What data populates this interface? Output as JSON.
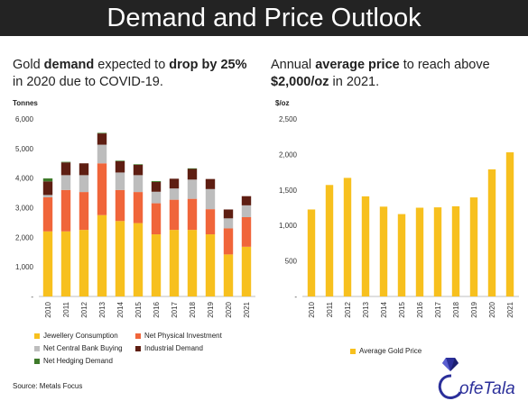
{
  "header": {
    "title": "Demand and Price Outlook"
  },
  "left_panel": {
    "subtitle_parts": [
      {
        "text": "Gold ",
        "bold": false
      },
      {
        "text": "demand",
        "bold": true
      },
      {
        "text": " expected to ",
        "bold": false
      },
      {
        "text": "drop by 25%",
        "bold": true
      },
      {
        "text": " in 2020 due to COVID-19.",
        "bold": false
      }
    ],
    "unit": "Tonnes"
  },
  "right_panel": {
    "subtitle_parts": [
      {
        "text": "Annual ",
        "bold": false
      },
      {
        "text": "average price",
        "bold": true
      },
      {
        "text": " to reach above ",
        "bold": false
      },
      {
        "text": "$2,000/oz",
        "bold": true
      },
      {
        "text": " in 2021.",
        "bold": false
      }
    ],
    "unit": "$/oz"
  },
  "source": "Source: Metals Focus",
  "logo_text": "ofeTala",
  "chart_data": [
    {
      "type": "bar",
      "stacked": true,
      "categories": [
        "2010",
        "2011",
        "2012",
        "2013",
        "2014",
        "2015",
        "2016",
        "2017",
        "2018",
        "2019",
        "2020",
        "2021"
      ],
      "ylim": [
        0,
        6000
      ],
      "yticks": [
        0,
        1000,
        2000,
        3000,
        4000,
        5000,
        6000
      ],
      "ytick_labels": [
        "-",
        "1,000",
        "2,000",
        "3,000",
        "4,000",
        "5,000",
        "6,000"
      ],
      "ylabel": "Tonnes",
      "grid": false,
      "legend_position": "bottom",
      "series": [
        {
          "name": "Jewellery Consumption",
          "color": "#f7c01e",
          "values": [
            2200,
            2200,
            2250,
            2750,
            2550,
            2480,
            2100,
            2250,
            2250,
            2100,
            1420,
            1680
          ]
        },
        {
          "name": "Net Physical Investment",
          "color": "#f0653a",
          "values": [
            1150,
            1400,
            1280,
            1750,
            1050,
            1050,
            1050,
            1020,
            1050,
            850,
            880,
            1000
          ]
        },
        {
          "name": "Net Central Bank Buying",
          "color": "#bdbdbd",
          "values": [
            80,
            500,
            570,
            630,
            590,
            570,
            390,
            380,
            650,
            680,
            340,
            400
          ]
        },
        {
          "name": "Industrial Demand",
          "color": "#5e1e12",
          "values": [
            460,
            430,
            400,
            380,
            380,
            350,
            330,
            330,
            360,
            340,
            300,
            310
          ]
        },
        {
          "name": "Net Hedging Demand",
          "color": "#3e7a2a",
          "values": [
            100,
            20,
            0,
            20,
            20,
            20,
            30,
            0,
            20,
            0,
            0,
            0
          ]
        }
      ]
    },
    {
      "type": "bar",
      "categories": [
        "2010",
        "2011",
        "2012",
        "2013",
        "2014",
        "2015",
        "2016",
        "2017",
        "2018",
        "2019",
        "2020",
        "2021"
      ],
      "ylim": [
        0,
        2500
      ],
      "yticks": [
        0,
        500,
        1000,
        1500,
        2000,
        2500
      ],
      "ytick_labels": [
        "-",
        "500",
        "1,000",
        "1,500",
        "2,000",
        "2,500"
      ],
      "ylabel": "$/oz",
      "grid": false,
      "legend_position": "bottom",
      "series": [
        {
          "name": "Average Gold Price",
          "color": "#f7c01e",
          "values": [
            1225,
            1570,
            1670,
            1410,
            1265,
            1160,
            1250,
            1255,
            1270,
            1395,
            1790,
            2030
          ]
        }
      ]
    }
  ]
}
